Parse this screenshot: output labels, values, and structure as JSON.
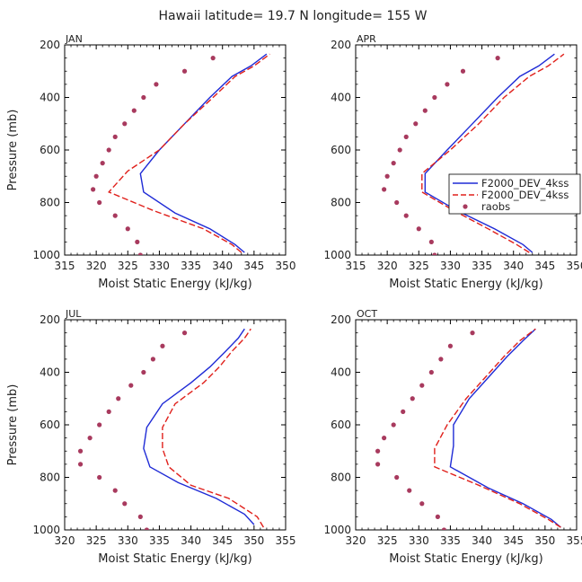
{
  "figure": {
    "title": "Hawaii  latitude= 19.7 N longitude= 155 W"
  },
  "colors": {
    "model_line": "#1f2bd6",
    "dev_line": "#e0201b",
    "raobs": "#a83a5e",
    "axis": "#000000",
    "text": "#222222"
  },
  "legend": {
    "entries": [
      {
        "label": "F2000_DEV_4kss",
        "style": "solid",
        "color": "#1f2bd6"
      },
      {
        "label": "F2000_DEV_4kss",
        "style": "dashed",
        "color": "#e0201b"
      },
      {
        "label": "raobs",
        "style": "dots",
        "color": "#a83a5e"
      }
    ]
  },
  "chart_data": [
    {
      "type": "line",
      "panel": "JAN",
      "xlabel": "Moist Static Energy (kJ/kg)",
      "ylabel": "Pressure (mb)",
      "xlim": [
        315,
        350
      ],
      "ylim": [
        1000,
        200
      ],
      "xticks": [
        315,
        320,
        325,
        330,
        335,
        340,
        345,
        350
      ],
      "yticks": [
        200,
        400,
        600,
        800,
        1000
      ],
      "series": [
        {
          "name": "F2000_DEV_4kss",
          "style": "solid",
          "color": "#1f2bd6",
          "points": [
            [
              343.5,
              990
            ],
            [
              342,
              960
            ],
            [
              338,
              900
            ],
            [
              332.5,
              840
            ],
            [
              327.5,
              760
            ],
            [
              327,
              690
            ],
            [
              330,
              600
            ],
            [
              334,
              500
            ],
            [
              338,
              400
            ],
            [
              341.5,
              320
            ],
            [
              344.5,
              280
            ],
            [
              347,
              235
            ]
          ]
        },
        {
          "name": "F2000_DEV_4kss",
          "style": "dashed",
          "color": "#e0201b",
          "points": [
            [
              343,
              990
            ],
            [
              341.5,
              960
            ],
            [
              337,
              900
            ],
            [
              329,
              830
            ],
            [
              322,
              760
            ],
            [
              325,
              680
            ],
            [
              330,
              600
            ],
            [
              334,
              500
            ],
            [
              338.5,
              400
            ],
            [
              342,
              320
            ],
            [
              345,
              280
            ],
            [
              347.5,
              235
            ]
          ]
        },
        {
          "name": "raobs",
          "style": "dots",
          "color": "#a83a5e",
          "points": [
            [
              327,
              1000
            ],
            [
              326.5,
              950
            ],
            [
              325,
              900
            ],
            [
              323,
              850
            ],
            [
              320.5,
              800
            ],
            [
              319.5,
              750
            ],
            [
              320,
              700
            ],
            [
              321,
              650
            ],
            [
              322,
              600
            ],
            [
              323,
              550
            ],
            [
              324.5,
              500
            ],
            [
              326,
              450
            ],
            [
              327.5,
              400
            ],
            [
              329.5,
              350
            ],
            [
              334,
              300
            ],
            [
              338.5,
              250
            ]
          ]
        }
      ]
    },
    {
      "type": "line",
      "panel": "APR",
      "xlabel": "Moist Static Energy (kJ/kg)",
      "ylabel": "",
      "xlim": [
        315,
        350
      ],
      "ylim": [
        1000,
        200
      ],
      "xticks": [
        315,
        320,
        325,
        330,
        335,
        340,
        345,
        350
      ],
      "yticks": [
        200,
        400,
        600,
        800,
        1000
      ],
      "series": [
        {
          "name": "F2000_DEV_4kss",
          "style": "solid",
          "color": "#1f2bd6",
          "points": [
            [
              343,
              990
            ],
            [
              341.5,
              960
            ],
            [
              337,
              900
            ],
            [
              331,
              830
            ],
            [
              326,
              760
            ],
            [
              326,
              690
            ],
            [
              329.5,
              600
            ],
            [
              333.5,
              500
            ],
            [
              337.5,
              400
            ],
            [
              341,
              320
            ],
            [
              344,
              280
            ],
            [
              346.5,
              235
            ]
          ]
        },
        {
          "name": "F2000_DEV_4kss",
          "style": "dashed",
          "color": "#e0201b",
          "points": [
            [
              342.5,
              990
            ],
            [
              340.5,
              960
            ],
            [
              336,
              900
            ],
            [
              330.5,
              830
            ],
            [
              325.5,
              760
            ],
            [
              325.5,
              690
            ],
            [
              330,
              600
            ],
            [
              334.5,
              500
            ],
            [
              338.5,
              400
            ],
            [
              342.5,
              320
            ],
            [
              345.5,
              280
            ],
            [
              348,
              235
            ]
          ]
        },
        {
          "name": "raobs",
          "style": "dots",
          "color": "#a83a5e",
          "points": [
            [
              327.5,
              1000
            ],
            [
              327,
              950
            ],
            [
              325,
              900
            ],
            [
              323,
              850
            ],
            [
              321.5,
              800
            ],
            [
              319.5,
              750
            ],
            [
              320,
              700
            ],
            [
              321,
              650
            ],
            [
              322,
              600
            ],
            [
              323,
              550
            ],
            [
              324.5,
              500
            ],
            [
              326,
              450
            ],
            [
              327.5,
              400
            ],
            [
              329.5,
              350
            ],
            [
              332,
              300
            ],
            [
              337.5,
              250
            ]
          ]
        }
      ]
    },
    {
      "type": "line",
      "panel": "JUL",
      "xlabel": "Moist Static Energy (kJ/kg)",
      "ylabel": "Pressure (mb)",
      "xlim": [
        320,
        355
      ],
      "ylim": [
        1000,
        200
      ],
      "xticks": [
        320,
        325,
        330,
        335,
        340,
        345,
        350,
        355
      ],
      "yticks": [
        200,
        400,
        600,
        800,
        1000
      ],
      "series": [
        {
          "name": "F2000_DEV_4kss",
          "style": "solid",
          "color": "#1f2bd6",
          "points": [
            [
              350,
              980
            ],
            [
              348.5,
              940
            ],
            [
              344,
              880
            ],
            [
              338,
              820
            ],
            [
              333.5,
              760
            ],
            [
              332.5,
              690
            ],
            [
              333,
              610
            ],
            [
              335.5,
              520
            ],
            [
              340,
              440
            ],
            [
              343,
              380
            ],
            [
              345.5,
              320
            ],
            [
              347.5,
              270
            ],
            [
              348.5,
              235
            ]
          ]
        },
        {
          "name": "F2000_DEV_4kss",
          "style": "dashed",
          "color": "#e0201b",
          "points": [
            [
              351.5,
              990
            ],
            [
              350.5,
              950
            ],
            [
              346,
              880
            ],
            [
              340,
              830
            ],
            [
              336.5,
              760
            ],
            [
              335.5,
              690
            ],
            [
              335.5,
              610
            ],
            [
              337.5,
              520
            ],
            [
              342,
              440
            ],
            [
              344.5,
              380
            ],
            [
              346.5,
              320
            ],
            [
              348.5,
              270
            ],
            [
              349.5,
              235
            ]
          ]
        },
        {
          "name": "raobs",
          "style": "dots",
          "color": "#a83a5e",
          "points": [
            [
              333,
              1000
            ],
            [
              332,
              950
            ],
            [
              329.5,
              900
            ],
            [
              328,
              850
            ],
            [
              325.5,
              800
            ],
            [
              322.5,
              750
            ],
            [
              322.5,
              700
            ],
            [
              324,
              650
            ],
            [
              325.5,
              600
            ],
            [
              327,
              550
            ],
            [
              328.5,
              500
            ],
            [
              330.5,
              450
            ],
            [
              332.5,
              400
            ],
            [
              334,
              350
            ],
            [
              335.5,
              300
            ],
            [
              339,
              250
            ]
          ]
        }
      ]
    },
    {
      "type": "line",
      "panel": "OCT",
      "xlabel": "Moist Static Energy (kJ/kg)",
      "ylabel": "",
      "xlim": [
        320,
        355
      ],
      "ylim": [
        1000,
        200
      ],
      "xticks": [
        320,
        325,
        330,
        335,
        340,
        345,
        350,
        355
      ],
      "yticks": [
        200,
        400,
        600,
        800,
        1000
      ],
      "series": [
        {
          "name": "F2000_DEV_4kss",
          "style": "solid",
          "color": "#1f2bd6",
          "points": [
            [
              352.5,
              990
            ],
            [
              351,
              960
            ],
            [
              346.5,
              900
            ],
            [
              341,
              840
            ],
            [
              335,
              760
            ],
            [
              335.5,
              680
            ],
            [
              335.5,
              600
            ],
            [
              338,
              500
            ],
            [
              341,
              420
            ],
            [
              344,
              340
            ],
            [
              346.5,
              280
            ],
            [
              348.5,
              235
            ]
          ]
        },
        {
          "name": "F2000_DEV_4kss",
          "style": "dashed",
          "color": "#e0201b",
          "points": [
            [
              352.5,
              990
            ],
            [
              350.5,
              960
            ],
            [
              346,
              900
            ],
            [
              339.5,
              830
            ],
            [
              332.5,
              760
            ],
            [
              332.5,
              690
            ],
            [
              334.5,
              600
            ],
            [
              337.5,
              500
            ],
            [
              340.5,
              420
            ],
            [
              343.5,
              340
            ],
            [
              346,
              280
            ],
            [
              348.5,
              235
            ]
          ]
        },
        {
          "name": "raobs",
          "style": "dots",
          "color": "#a83a5e",
          "points": [
            [
              334,
              1000
            ],
            [
              333,
              950
            ],
            [
              330.5,
              900
            ],
            [
              328.5,
              850
            ],
            [
              326.5,
              800
            ],
            [
              323.5,
              750
            ],
            [
              323.5,
              700
            ],
            [
              324.5,
              650
            ],
            [
              326,
              600
            ],
            [
              327.5,
              550
            ],
            [
              329,
              500
            ],
            [
              330.5,
              450
            ],
            [
              332,
              400
            ],
            [
              333.5,
              350
            ],
            [
              335,
              300
            ],
            [
              338.5,
              250
            ]
          ]
        }
      ]
    }
  ]
}
